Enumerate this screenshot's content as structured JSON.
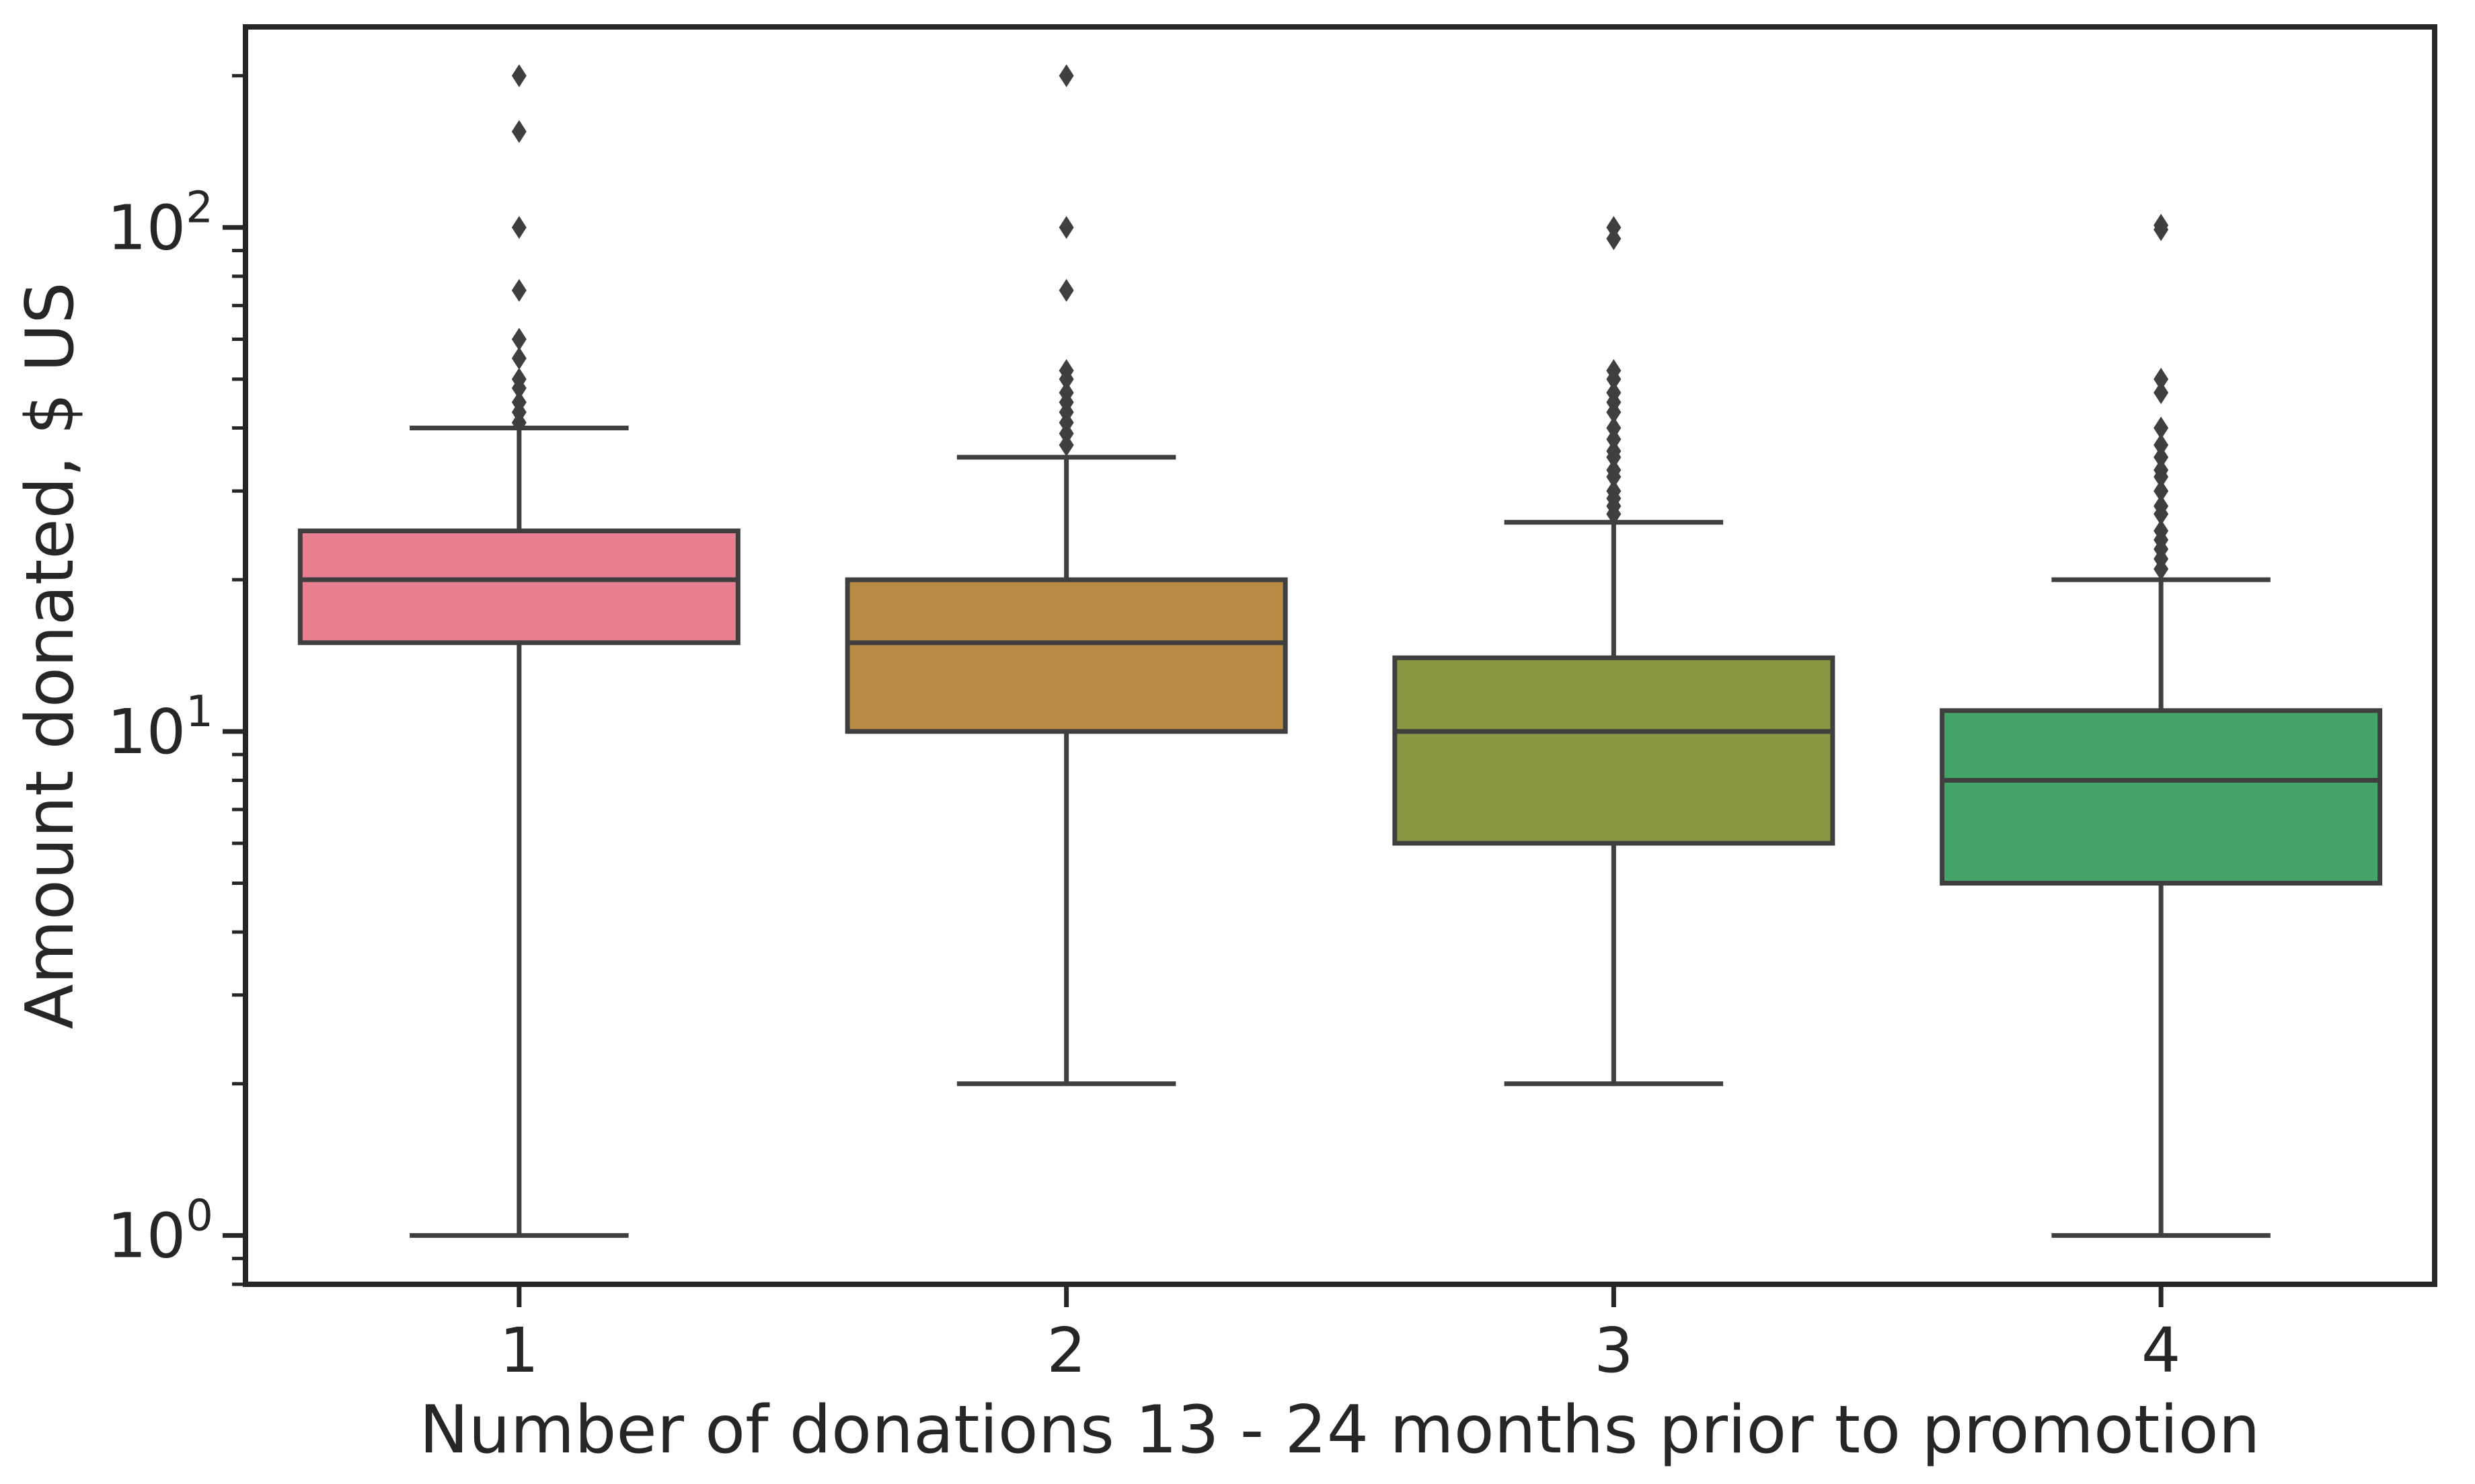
{
  "chart_data": {
    "type": "box",
    "title": "",
    "xlabel": "Number of donations 13 - 24 months prior to promotion",
    "ylabel": "Amount donated, $ US",
    "yscale": "log",
    "ylim": [
      0.8,
      250
    ],
    "yticks": [
      {
        "value": 1,
        "base": "10",
        "exp": "0"
      },
      {
        "value": 10,
        "base": "10",
        "exp": "1"
      },
      {
        "value": 100,
        "base": "10",
        "exp": "2"
      }
    ],
    "categories": [
      "1",
      "2",
      "3",
      "4"
    ],
    "boxes": [
      {
        "category": "1",
        "whisker_low": 1,
        "q1": 15,
        "median": 20,
        "q3": 25,
        "whisker_high": 40,
        "color": "#e87f91",
        "outliers": [
          200,
          155,
          100,
          75,
          60,
          55,
          50,
          48,
          45,
          43,
          41
        ]
      },
      {
        "category": "2",
        "whisker_low": 2,
        "q1": 10,
        "median": 15,
        "q3": 20,
        "whisker_high": 35,
        "color": "#b98a44",
        "outliers": [
          200,
          100,
          75,
          52,
          50,
          47,
          45,
          43,
          41,
          39,
          37
        ]
      },
      {
        "category": "3",
        "whisker_low": 2,
        "q1": 6,
        "median": 10,
        "q3": 14,
        "whisker_high": 26,
        "color": "#8b9642",
        "outliers": [
          100,
          95,
          52,
          50,
          47,
          45,
          43,
          40,
          38,
          36,
          35,
          33,
          32,
          30,
          29,
          28,
          27
        ]
      },
      {
        "category": "4",
        "whisker_low": 1,
        "q1": 5,
        "median": 8,
        "q3": 11,
        "whisker_high": 20,
        "color": "#43a369",
        "outliers": [
          101,
          99,
          50,
          47,
          40,
          37,
          35,
          33,
          32,
          30,
          28,
          27,
          25,
          24,
          23,
          22,
          21
        ]
      }
    ],
    "grid": false,
    "legend": "none"
  }
}
